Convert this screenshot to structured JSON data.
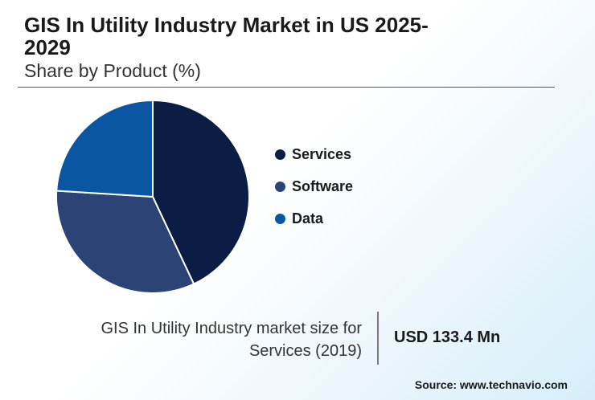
{
  "header": {
    "title": "GIS In Utility Industry Market in US 2025-2029",
    "subtitle": "Share by Product (%)"
  },
  "chart_data": {
    "type": "pie",
    "title": "GIS In Utility Industry Market in US 2025-2029",
    "subtitle": "Share by Product (%)",
    "categories": [
      "Services",
      "Software",
      "Data"
    ],
    "values": [
      43,
      33,
      24
    ],
    "colors": [
      "#0b1d45",
      "#2c4375",
      "#0a56a3"
    ],
    "legend_position": "right"
  },
  "stat": {
    "label": "GIS In Utility Industry market size for Services (2019)",
    "value": "USD 133.4 Mn"
  },
  "source": "Source: www.technavio.com"
}
